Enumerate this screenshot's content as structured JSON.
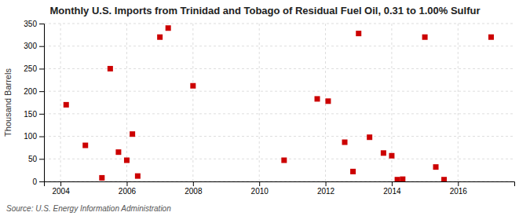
{
  "chart_data": {
    "type": "scatter",
    "title": "Monthly U.S. Imports from Trinidad and Tobago of Residual Fuel Oil, 0.31 to 1.00% Sulfur",
    "ylabel": "Thousand Barrels",
    "annotations": [
      "Source: U.S. Energy Information Administration"
    ],
    "x": [
      2004.17,
      2004.75,
      2005.25,
      2005.5,
      2005.75,
      2006.0,
      2006.17,
      2006.33,
      2007.0,
      2007.25,
      2008.0,
      2010.75,
      2011.75,
      2012.08,
      2012.58,
      2012.83,
      2013.0,
      2013.33,
      2013.75,
      2014.0,
      2014.17,
      2014.33,
      2015.0,
      2015.33,
      2015.58,
      2017.0
    ],
    "values": [
      170,
      80,
      8,
      250,
      65,
      47,
      105,
      12,
      320,
      340,
      212,
      47,
      183,
      178,
      87,
      22,
      328,
      98,
      63,
      57,
      4,
      5,
      320,
      32,
      4,
      320
    ],
    "color": "#cc0000",
    "marker": "square",
    "xlim": [
      2003.5,
      2017.7
    ],
    "ylim": [
      0,
      350
    ],
    "xticks": [
      2004,
      2006,
      2008,
      2010,
      2012,
      2014,
      2016
    ],
    "yticks": [
      0,
      50,
      100,
      150,
      200,
      250,
      300,
      350
    ],
    "grid": true
  }
}
